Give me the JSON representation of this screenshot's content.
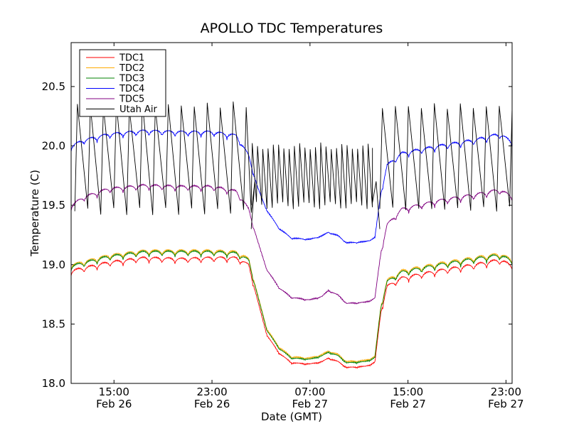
{
  "chart_data": {
    "type": "line",
    "title": "APOLLO TDC Temperatures",
    "xlabel": "Date (GMT)",
    "ylabel": "Temperature (C)",
    "ylim": [
      18.0,
      20.87
    ],
    "xlim_hours": [
      0,
      36.0
    ],
    "yticks": [
      18.0,
      18.5,
      19.0,
      19.5,
      20.0,
      20.5
    ],
    "ytick_labels": [
      "18.0",
      "18.5",
      "19.0",
      "19.5",
      "20.0",
      "20.5"
    ],
    "xticks": [
      {
        "hours": 3.5,
        "time": "15:00",
        "date": "Feb 26"
      },
      {
        "hours": 11.5,
        "time": "23:00",
        "date": "Feb 26"
      },
      {
        "hours": 19.5,
        "time": "07:00",
        "date": "Feb 27"
      },
      {
        "hours": 27.5,
        "time": "15:00",
        "date": "Feb 27"
      },
      {
        "hours": 35.5,
        "time": "23:00",
        "date": "Feb 27"
      }
    ],
    "legend_position": "top-left",
    "series": [
      {
        "name": "TDC1",
        "color": "#ff0000",
        "baseline": [
          [
            0,
            18.93
          ],
          [
            3,
            19.0
          ],
          [
            6,
            19.04
          ],
          [
            9,
            19.03
          ],
          [
            11.5,
            19.04
          ],
          [
            13.5,
            19.04
          ],
          [
            14.5,
            18.98
          ],
          [
            15.2,
            18.7
          ],
          [
            16,
            18.4
          ],
          [
            17,
            18.25
          ],
          [
            18,
            18.17
          ],
          [
            19.5,
            18.16
          ],
          [
            20.5,
            18.18
          ],
          [
            21,
            18.21
          ],
          [
            21.8,
            18.18
          ],
          [
            22.5,
            18.13
          ],
          [
            24,
            18.14
          ],
          [
            24.8,
            18.17
          ],
          [
            25.3,
            18.6
          ],
          [
            25.8,
            18.8
          ],
          [
            27,
            18.87
          ],
          [
            30,
            18.93
          ],
          [
            33,
            18.98
          ],
          [
            35,
            19.02
          ],
          [
            36,
            18.97
          ]
        ],
        "ripple": [
          [
            0,
            0.05
          ],
          [
            14.5,
            0.05
          ],
          [
            15.5,
            0.01
          ],
          [
            24.5,
            0.01
          ],
          [
            25.5,
            0.05
          ],
          [
            36,
            0.06
          ]
        ]
      },
      {
        "name": "TDC2",
        "color": "#ffaa00",
        "baseline": [
          [
            0,
            18.98
          ],
          [
            3,
            19.06
          ],
          [
            6,
            19.1
          ],
          [
            9,
            19.1
          ],
          [
            11.5,
            19.1
          ],
          [
            13.5,
            19.09
          ],
          [
            14.5,
            19.03
          ],
          [
            15.2,
            18.75
          ],
          [
            16,
            18.45
          ],
          [
            17,
            18.3
          ],
          [
            18,
            18.22
          ],
          [
            19.5,
            18.21
          ],
          [
            20.5,
            18.24
          ],
          [
            21,
            18.27
          ],
          [
            21.8,
            18.24
          ],
          [
            22.5,
            18.18
          ],
          [
            24,
            18.19
          ],
          [
            24.8,
            18.22
          ],
          [
            25.3,
            18.65
          ],
          [
            25.8,
            18.85
          ],
          [
            27,
            18.93
          ],
          [
            30,
            18.99
          ],
          [
            33,
            19.04
          ],
          [
            35,
            19.07
          ],
          [
            36,
            19.02
          ]
        ],
        "ripple": [
          [
            0,
            0.05
          ],
          [
            14.5,
            0.05
          ],
          [
            15.5,
            0.01
          ],
          [
            24.5,
            0.01
          ],
          [
            25.5,
            0.05
          ],
          [
            36,
            0.06
          ]
        ]
      },
      {
        "name": "TDC3",
        "color": "#008000",
        "baseline": [
          [
            0,
            18.97
          ],
          [
            3,
            19.05
          ],
          [
            6,
            19.09
          ],
          [
            9,
            19.09
          ],
          [
            11.5,
            19.09
          ],
          [
            13.5,
            19.08
          ],
          [
            14.5,
            19.02
          ],
          [
            15.2,
            18.74
          ],
          [
            16,
            18.44
          ],
          [
            17,
            18.29
          ],
          [
            18,
            18.21
          ],
          [
            19.5,
            18.2
          ],
          [
            20.5,
            18.23
          ],
          [
            21,
            18.26
          ],
          [
            21.8,
            18.23
          ],
          [
            22.5,
            18.17
          ],
          [
            24,
            18.18
          ],
          [
            24.8,
            18.21
          ],
          [
            25.3,
            18.64
          ],
          [
            25.8,
            18.84
          ],
          [
            27,
            18.92
          ],
          [
            30,
            18.98
          ],
          [
            33,
            19.03
          ],
          [
            35,
            19.06
          ],
          [
            36,
            19.01
          ]
        ],
        "ripple": [
          [
            0,
            0.05
          ],
          [
            14.5,
            0.05
          ],
          [
            15.5,
            0.01
          ],
          [
            24.5,
            0.01
          ],
          [
            25.5,
            0.05
          ],
          [
            36,
            0.06
          ]
        ]
      },
      {
        "name": "TDC4",
        "color": "#0000ff",
        "baseline": [
          [
            0,
            19.98
          ],
          [
            1,
            20.03
          ],
          [
            3,
            20.08
          ],
          [
            6,
            20.11
          ],
          [
            9,
            20.1
          ],
          [
            11.5,
            20.1
          ],
          [
            13.5,
            20.07
          ],
          [
            14.5,
            19.9
          ],
          [
            15.2,
            19.65
          ],
          [
            16,
            19.45
          ],
          [
            17,
            19.3
          ],
          [
            18,
            19.22
          ],
          [
            19.5,
            19.21
          ],
          [
            20.5,
            19.24
          ],
          [
            21,
            19.27
          ],
          [
            21.8,
            19.24
          ],
          [
            22.5,
            19.18
          ],
          [
            24,
            19.19
          ],
          [
            24.8,
            19.22
          ],
          [
            25.3,
            19.6
          ],
          [
            25.8,
            19.82
          ],
          [
            27,
            19.92
          ],
          [
            30,
            19.98
          ],
          [
            33,
            20.03
          ],
          [
            35,
            20.08
          ],
          [
            36,
            20.01
          ]
        ],
        "ripple": [
          [
            0,
            0.05
          ],
          [
            14.5,
            0.05
          ],
          [
            15.5,
            0.01
          ],
          [
            24.5,
            0.01
          ],
          [
            25.5,
            0.05
          ],
          [
            36,
            0.06
          ]
        ]
      },
      {
        "name": "TDC5",
        "color": "#800080",
        "baseline": [
          [
            0,
            19.48
          ],
          [
            1,
            19.55
          ],
          [
            3,
            19.62
          ],
          [
            6,
            19.65
          ],
          [
            9,
            19.64
          ],
          [
            11.5,
            19.64
          ],
          [
            13.5,
            19.6
          ],
          [
            14.5,
            19.45
          ],
          [
            15.2,
            19.2
          ],
          [
            16,
            18.95
          ],
          [
            17,
            18.8
          ],
          [
            18,
            18.72
          ],
          [
            19.5,
            18.7
          ],
          [
            20.5,
            18.73
          ],
          [
            21,
            18.78
          ],
          [
            21.8,
            18.74
          ],
          [
            22.5,
            18.67
          ],
          [
            24,
            18.68
          ],
          [
            24.8,
            18.71
          ],
          [
            25.3,
            19.1
          ],
          [
            25.8,
            19.32
          ],
          [
            27,
            19.45
          ],
          [
            30,
            19.52
          ],
          [
            33,
            19.57
          ],
          [
            35,
            19.61
          ],
          [
            36,
            19.55
          ]
        ],
        "ripple": [
          [
            0,
            0.05
          ],
          [
            14.5,
            0.05
          ],
          [
            15.5,
            0.01
          ],
          [
            24.5,
            0.01
          ],
          [
            25.5,
            0.05
          ],
          [
            36,
            0.06
          ]
        ]
      },
      {
        "name": "Utah Air",
        "color": "#000000",
        "segments": [
          {
            "from": 0.3,
            "to": 14.7,
            "period": 1.06,
            "low": 19.45,
            "high": 20.38
          },
          {
            "from": 14.7,
            "to": 24.6,
            "period": 0.43,
            "low": 19.5,
            "high": 20.03
          },
          {
            "from": 25.2,
            "to": 36.0,
            "period": 1.06,
            "low": 19.47,
            "high": 20.37
          }
        ]
      }
    ]
  }
}
